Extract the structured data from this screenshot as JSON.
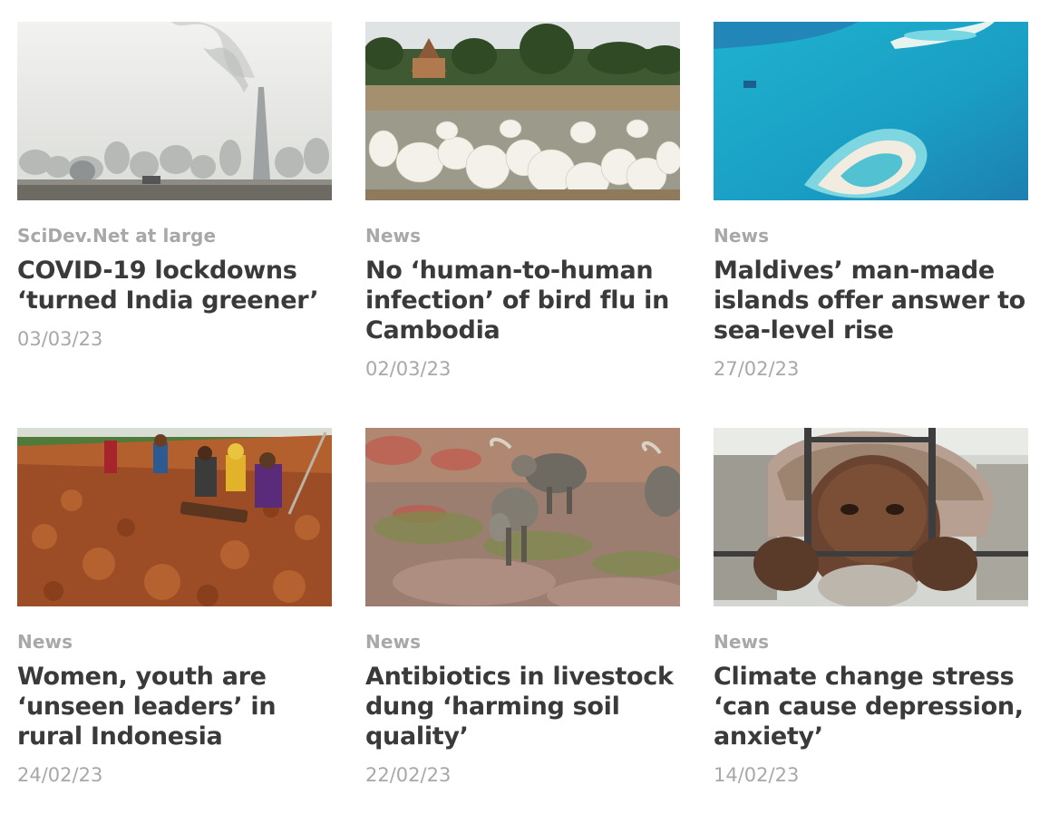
{
  "articles": [
    {
      "category": "SciDev.Net at large",
      "title": "COVID-19 lockdowns ‘turned India greener’",
      "date": "03/03/23",
      "image": "factory-smokestack-haze"
    },
    {
      "category": "News",
      "title": "No ‘human-to-human infection’ of bird flu in Cambodia",
      "date": "02/03/23",
      "image": "ducks-flock-temple"
    },
    {
      "category": "News",
      "title": "Maldives’ man-made islands offer answer to sea-level rise",
      "date": "27/02/23",
      "image": "aerial-islands-ocean"
    },
    {
      "category": "News",
      "title": "Women, youth are ‘unseen leaders’ in rural Indonesia",
      "date": "24/02/23",
      "image": "cocoa-beans-drying"
    },
    {
      "category": "News",
      "title": "Antibiotics in livestock dung ‘harming soil quality’",
      "date": "22/02/23",
      "image": "goats-grazing-field"
    },
    {
      "category": "News",
      "title": "Climate change stress ‘can cause depression, anxiety’",
      "date": "14/02/23",
      "image": "man-behind-frame"
    }
  ]
}
